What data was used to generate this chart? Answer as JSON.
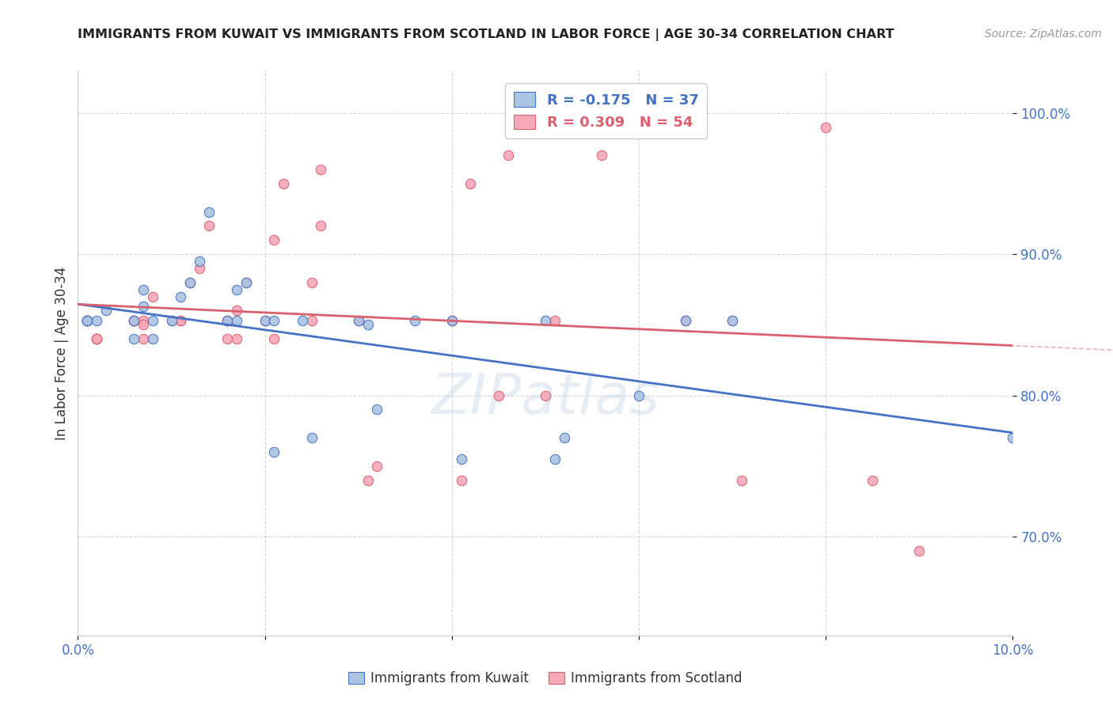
{
  "title": "IMMIGRANTS FROM KUWAIT VS IMMIGRANTS FROM SCOTLAND IN LABOR FORCE | AGE 30-34 CORRELATION CHART",
  "source": "Source: ZipAtlas.com",
  "ylabel": "In Labor Force | Age 30-34",
  "xlim": [
    0.0,
    0.1
  ],
  "ylim": [
    0.63,
    1.03
  ],
  "kuwait_R": -0.175,
  "kuwait_N": 37,
  "scotland_R": 0.309,
  "scotland_N": 54,
  "kuwait_color": "#aac4e2",
  "scotland_color": "#f5a8b8",
  "kuwait_line_color": "#4472c4",
  "scotland_line_color": "#d9606e",
  "kuwait_x": [
    0.001,
    0.001,
    0.002,
    0.003,
    0.006,
    0.006,
    0.007,
    0.007,
    0.008,
    0.008,
    0.01,
    0.011,
    0.012,
    0.013,
    0.014,
    0.016,
    0.017,
    0.017,
    0.018,
    0.02,
    0.021,
    0.021,
    0.024,
    0.025,
    0.03,
    0.031,
    0.032,
    0.036,
    0.04,
    0.041,
    0.05,
    0.051,
    0.052,
    0.06,
    0.065,
    0.07,
    0.1
  ],
  "kuwait_y": [
    0.853,
    0.853,
    0.853,
    0.86,
    0.84,
    0.853,
    0.863,
    0.875,
    0.84,
    0.853,
    0.853,
    0.87,
    0.88,
    0.895,
    0.93,
    0.853,
    0.853,
    0.875,
    0.88,
    0.853,
    0.853,
    0.76,
    0.853,
    0.77,
    0.853,
    0.85,
    0.79,
    0.853,
    0.853,
    0.755,
    0.853,
    0.755,
    0.77,
    0.8,
    0.853,
    0.853,
    0.77
  ],
  "scotland_x": [
    0.001,
    0.001,
    0.001,
    0.001,
    0.001,
    0.002,
    0.002,
    0.002,
    0.002,
    0.006,
    0.006,
    0.006,
    0.007,
    0.007,
    0.007,
    0.008,
    0.01,
    0.011,
    0.011,
    0.012,
    0.013,
    0.014,
    0.016,
    0.016,
    0.016,
    0.017,
    0.017,
    0.018,
    0.02,
    0.021,
    0.021,
    0.022,
    0.025,
    0.025,
    0.026,
    0.026,
    0.03,
    0.031,
    0.032,
    0.04,
    0.041,
    0.042,
    0.045,
    0.046,
    0.05,
    0.051,
    0.056,
    0.06,
    0.065,
    0.07,
    0.071,
    0.08,
    0.085,
    0.09
  ],
  "scotland_y": [
    0.853,
    0.853,
    0.853,
    0.853,
    0.853,
    0.84,
    0.84,
    0.84,
    0.84,
    0.853,
    0.853,
    0.853,
    0.853,
    0.84,
    0.85,
    0.87,
    0.853,
    0.853,
    0.853,
    0.88,
    0.89,
    0.92,
    0.853,
    0.853,
    0.84,
    0.84,
    0.86,
    0.88,
    0.853,
    0.84,
    0.91,
    0.95,
    0.853,
    0.88,
    0.92,
    0.96,
    0.853,
    0.74,
    0.75,
    0.853,
    0.74,
    0.95,
    0.8,
    0.97,
    0.8,
    0.853,
    0.97,
    0.99,
    0.853,
    0.853,
    0.74,
    0.99,
    0.74,
    0.69
  ]
}
